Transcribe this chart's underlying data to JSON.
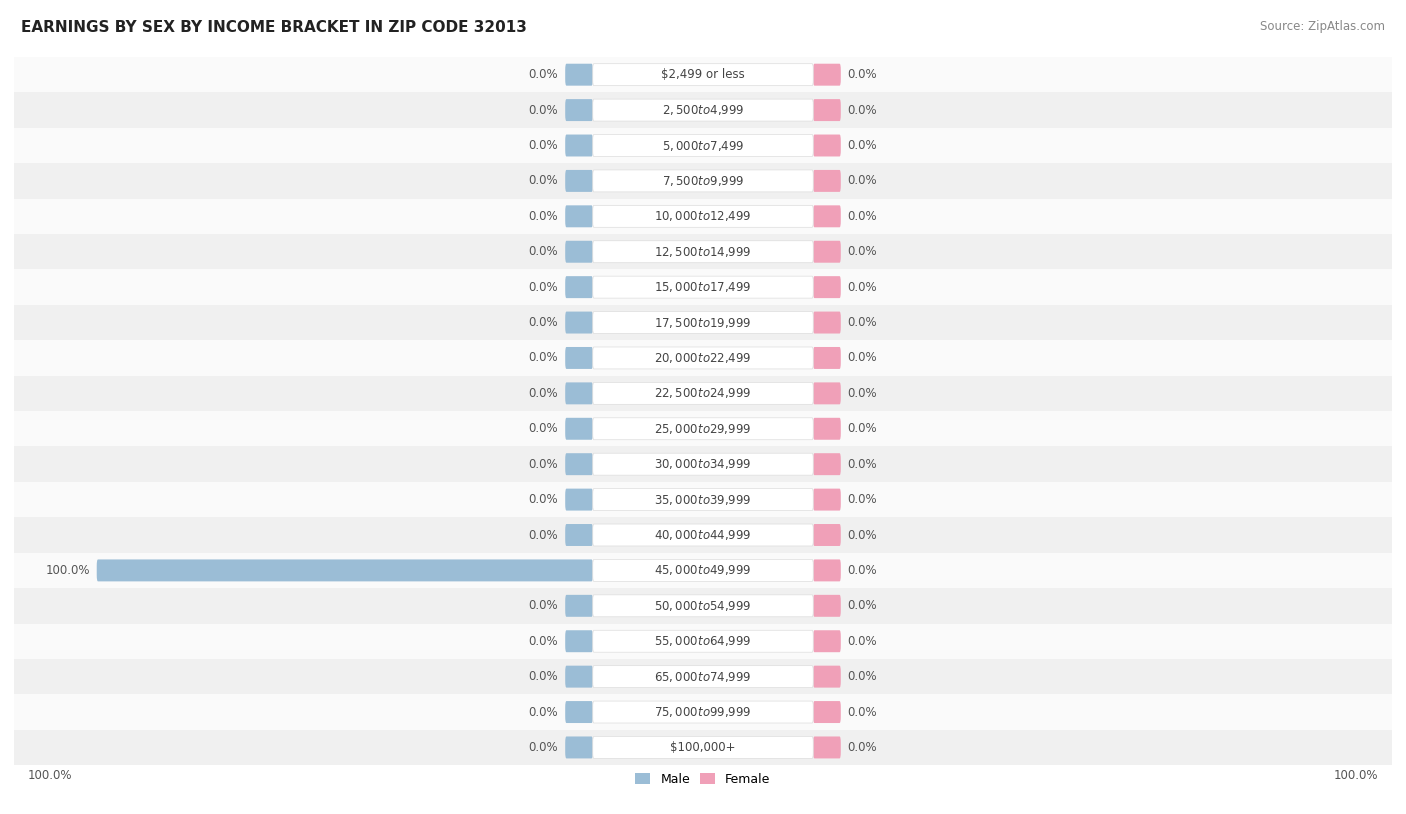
{
  "title": "EARNINGS BY SEX BY INCOME BRACKET IN ZIP CODE 32013",
  "source": "Source: ZipAtlas.com",
  "categories": [
    "$2,499 or less",
    "$2,500 to $4,999",
    "$5,000 to $7,499",
    "$7,500 to $9,999",
    "$10,000 to $12,499",
    "$12,500 to $14,999",
    "$15,000 to $17,499",
    "$17,500 to $19,999",
    "$20,000 to $22,499",
    "$22,500 to $24,999",
    "$25,000 to $29,999",
    "$30,000 to $34,999",
    "$35,000 to $39,999",
    "$40,000 to $44,999",
    "$45,000 to $49,999",
    "$50,000 to $54,999",
    "$55,000 to $64,999",
    "$65,000 to $74,999",
    "$75,000 to $99,999",
    "$100,000+"
  ],
  "male_values": [
    0.0,
    0.0,
    0.0,
    0.0,
    0.0,
    0.0,
    0.0,
    0.0,
    0.0,
    0.0,
    0.0,
    0.0,
    0.0,
    0.0,
    100.0,
    0.0,
    0.0,
    0.0,
    0.0,
    0.0
  ],
  "female_values": [
    0.0,
    0.0,
    0.0,
    0.0,
    0.0,
    0.0,
    0.0,
    0.0,
    0.0,
    0.0,
    0.0,
    0.0,
    0.0,
    0.0,
    0.0,
    0.0,
    0.0,
    0.0,
    0.0,
    0.0
  ],
  "male_color": "#9bbdd6",
  "female_color": "#f0a0b8",
  "row_bg_even": "#f0f0f0",
  "row_bg_odd": "#fafafa",
  "title_fontsize": 11,
  "source_fontsize": 8.5,
  "label_fontsize": 8.5,
  "category_fontsize": 8.5,
  "max_value": 100.0,
  "legend_male": "Male",
  "legend_female": "Female",
  "min_bar_stub": 4.0
}
